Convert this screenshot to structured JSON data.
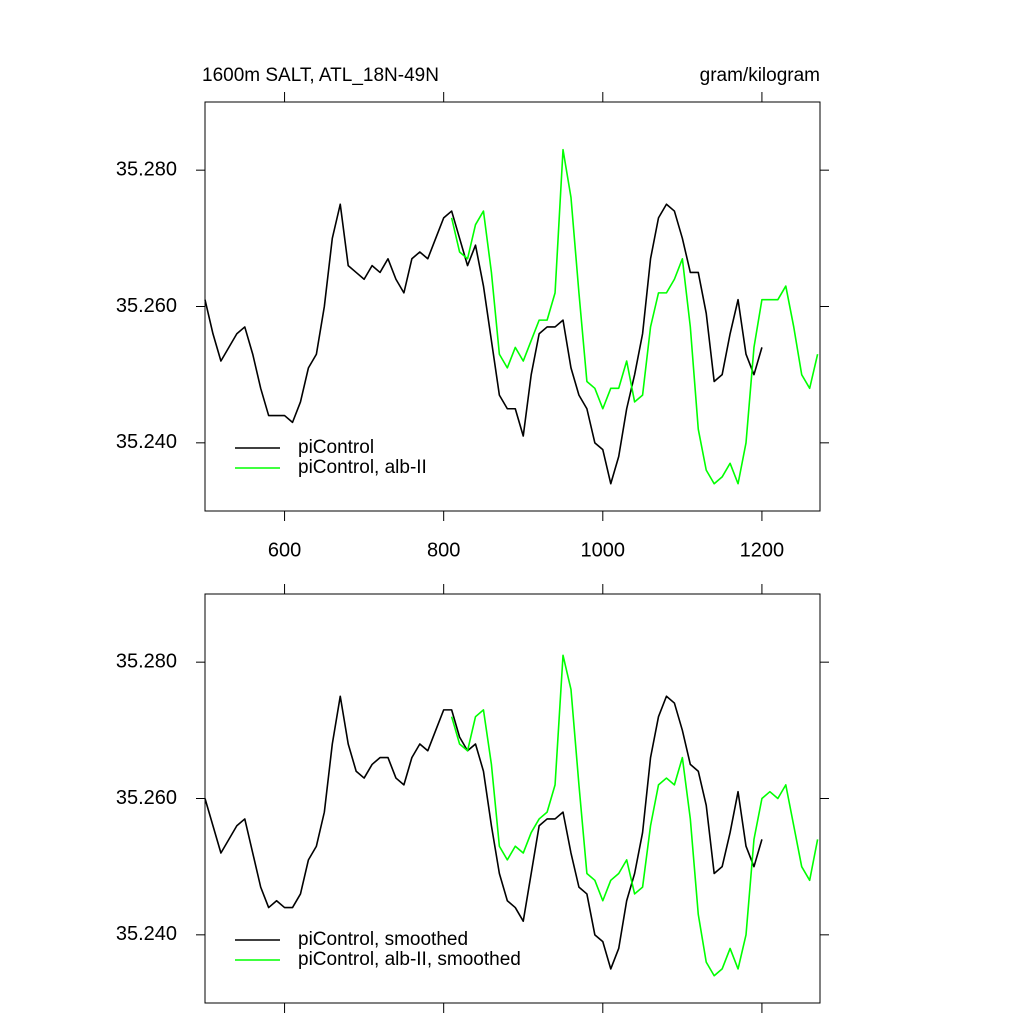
{
  "chart_data": [
    {
      "type": "line",
      "title": "1600m SALT, ATL_18N-49N",
      "units": "gram/kilogram",
      "x": [
        500,
        510,
        520,
        530,
        540,
        550,
        560,
        570,
        580,
        590,
        600,
        610,
        620,
        630,
        640,
        650,
        660,
        670,
        680,
        690,
        700,
        710,
        720,
        730,
        740,
        750,
        760,
        770,
        780,
        790,
        800,
        810,
        820,
        830,
        840,
        850,
        860,
        870,
        880,
        890,
        900,
        910,
        920,
        930,
        940,
        950,
        960,
        970,
        980,
        990,
        1000,
        1010,
        1020,
        1030,
        1040,
        1050,
        1060,
        1070,
        1080,
        1090,
        1100,
        1110,
        1120,
        1130,
        1140,
        1150,
        1160,
        1170,
        1180,
        1190,
        1200,
        1210,
        1220,
        1230,
        1240,
        1250,
        1260,
        1270
      ],
      "series": [
        {
          "name": "piControl",
          "color": "#000000",
          "values": [
            35.261,
            35.256,
            35.252,
            35.254,
            35.256,
            35.257,
            35.253,
            35.248,
            35.244,
            35.244,
            35.244,
            35.243,
            35.246,
            35.251,
            35.253,
            35.26,
            35.27,
            35.275,
            35.266,
            35.265,
            35.264,
            35.266,
            35.265,
            35.267,
            35.264,
            35.262,
            35.267,
            35.268,
            35.267,
            35.27,
            35.273,
            35.274,
            35.27,
            35.266,
            35.269,
            35.263,
            35.255,
            35.247,
            35.245,
            35.245,
            35.241,
            35.25,
            35.256,
            35.257,
            35.257,
            35.258,
            35.251,
            35.247,
            35.245,
            35.24,
            35.239,
            35.234,
            35.238,
            35.245,
            35.25,
            35.256,
            35.267,
            35.273,
            35.275,
            35.274,
            35.27,
            35.265,
            35.265,
            35.259,
            35.249,
            35.25,
            35.256,
            35.261,
            35.253,
            35.25,
            35.254,
            null,
            null,
            null,
            null,
            null,
            null,
            null
          ]
        },
        {
          "name": "piControl, alb-II",
          "color": "#00ff00",
          "values": [
            null,
            null,
            null,
            null,
            null,
            null,
            null,
            null,
            null,
            null,
            null,
            null,
            null,
            null,
            null,
            null,
            null,
            null,
            null,
            null,
            null,
            null,
            null,
            null,
            null,
            null,
            null,
            null,
            null,
            null,
            null,
            35.273,
            35.268,
            35.267,
            35.272,
            35.274,
            35.265,
            35.253,
            35.251,
            35.254,
            35.252,
            35.255,
            35.258,
            35.258,
            35.262,
            35.283,
            35.276,
            35.262,
            35.249,
            35.248,
            35.245,
            35.248,
            35.248,
            35.252,
            35.246,
            35.247,
            35.257,
            35.262,
            35.262,
            35.264,
            35.267,
            35.257,
            35.242,
            35.236,
            35.234,
            35.235,
            35.237,
            35.234,
            35.24,
            35.254,
            35.261,
            35.261,
            35.261,
            35.263,
            35.257,
            35.25,
            35.248,
            35.253
          ]
        }
      ],
      "xlim": [
        500,
        1273
      ],
      "xticks": [
        600,
        800,
        1000,
        1200
      ],
      "x_tick_labels": true,
      "ylim": [
        35.23,
        35.29
      ],
      "yticks": [
        {
          "value": 35.24,
          "label": "35.240"
        },
        {
          "value": 35.26,
          "label": "35.260"
        },
        {
          "value": 35.28,
          "label": "35.280"
        }
      ],
      "legend": "lower left"
    },
    {
      "type": "line",
      "x": [
        500,
        510,
        520,
        530,
        540,
        550,
        560,
        570,
        580,
        590,
        600,
        610,
        620,
        630,
        640,
        650,
        660,
        670,
        680,
        690,
        700,
        710,
        720,
        730,
        740,
        750,
        760,
        770,
        780,
        790,
        800,
        810,
        820,
        830,
        840,
        850,
        860,
        870,
        880,
        890,
        900,
        910,
        920,
        930,
        940,
        950,
        960,
        970,
        980,
        990,
        1000,
        1010,
        1020,
        1030,
        1040,
        1050,
        1060,
        1070,
        1080,
        1090,
        1100,
        1110,
        1120,
        1130,
        1140,
        1150,
        1160,
        1170,
        1180,
        1190,
        1200,
        1210,
        1220,
        1230,
        1240,
        1250,
        1260,
        1270
      ],
      "series": [
        {
          "name": "piControl, smoothed",
          "color": "#000000",
          "values": [
            35.26,
            35.256,
            35.252,
            35.254,
            35.256,
            35.257,
            35.252,
            35.247,
            35.244,
            35.245,
            35.244,
            35.244,
            35.246,
            35.251,
            35.253,
            35.258,
            35.268,
            35.275,
            35.268,
            35.264,
            35.263,
            35.265,
            35.266,
            35.266,
            35.263,
            35.262,
            35.266,
            35.268,
            35.267,
            35.27,
            35.273,
            35.273,
            35.269,
            35.267,
            35.268,
            35.264,
            35.256,
            35.249,
            35.245,
            35.244,
            35.242,
            35.249,
            35.256,
            35.257,
            35.257,
            35.258,
            35.252,
            35.247,
            35.246,
            35.24,
            35.239,
            35.235,
            35.238,
            35.245,
            35.249,
            35.255,
            35.266,
            35.272,
            35.275,
            35.274,
            35.27,
            35.265,
            35.264,
            35.259,
            35.249,
            35.25,
            35.255,
            35.261,
            35.253,
            35.25,
            35.254,
            null,
            null,
            null,
            null,
            null,
            null,
            null
          ]
        },
        {
          "name": "piControl, alb-II, smoothed",
          "color": "#00ff00",
          "values": [
            null,
            null,
            null,
            null,
            null,
            null,
            null,
            null,
            null,
            null,
            null,
            null,
            null,
            null,
            null,
            null,
            null,
            null,
            null,
            null,
            null,
            null,
            null,
            null,
            null,
            null,
            null,
            null,
            null,
            null,
            null,
            35.272,
            35.268,
            35.267,
            35.272,
            35.273,
            35.265,
            35.253,
            35.251,
            35.253,
            35.252,
            35.255,
            35.257,
            35.258,
            35.262,
            35.281,
            35.276,
            35.262,
            35.249,
            35.248,
            35.245,
            35.248,
            35.249,
            35.251,
            35.246,
            35.247,
            35.256,
            35.262,
            35.263,
            35.262,
            35.266,
            35.257,
            35.243,
            35.236,
            35.234,
            35.235,
            35.238,
            35.235,
            35.24,
            35.254,
            35.26,
            35.261,
            35.26,
            35.262,
            35.256,
            35.25,
            35.248,
            35.254
          ]
        }
      ],
      "xlim": [
        500,
        1273
      ],
      "xticks": [
        600,
        800,
        1000,
        1200
      ],
      "x_tick_labels": false,
      "ylim": [
        35.23,
        35.29
      ],
      "yticks": [
        {
          "value": 35.24,
          "label": "35.240"
        },
        {
          "value": 35.26,
          "label": "35.260"
        },
        {
          "value": 35.28,
          "label": "35.280"
        }
      ],
      "legend": "lower left"
    }
  ]
}
